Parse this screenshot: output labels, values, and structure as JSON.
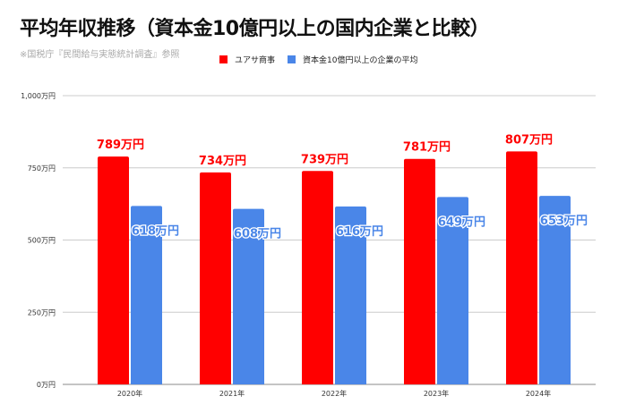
{
  "chart_data": {
    "type": "bar",
    "title": "平均年収推移（資本金10億円以上の国内企業と比較）",
    "subtitle": "※国税庁『民間給与実態統計調査』参照",
    "categories": [
      "2020年",
      "2021年",
      "2022年",
      "2023年",
      "2024年"
    ],
    "series": [
      {
        "name": "ユアサ商事",
        "color": "#ff0000",
        "values": [
          789,
          734,
          739,
          781,
          807
        ],
        "labels": [
          "789万円",
          "734万円",
          "739万円",
          "781万円",
          "807万円"
        ],
        "label_color": "#ff0000"
      },
      {
        "name": "資本金10億円以上の企業の平均",
        "color": "#4a86e8",
        "values": [
          618,
          608,
          616,
          649,
          653
        ],
        "labels": [
          "618万円",
          "608万円",
          "616万円",
          "649万円",
          "653万円"
        ],
        "label_color": "#4a86e8"
      }
    ],
    "yticks": [
      0,
      250,
      500,
      750,
      1000
    ],
    "ytick_labels": [
      "0万円",
      "250万円",
      "500万円",
      "750万円",
      "1,000万円"
    ],
    "ylim": [
      0,
      1000
    ],
    "grid": true,
    "legend": "top"
  }
}
